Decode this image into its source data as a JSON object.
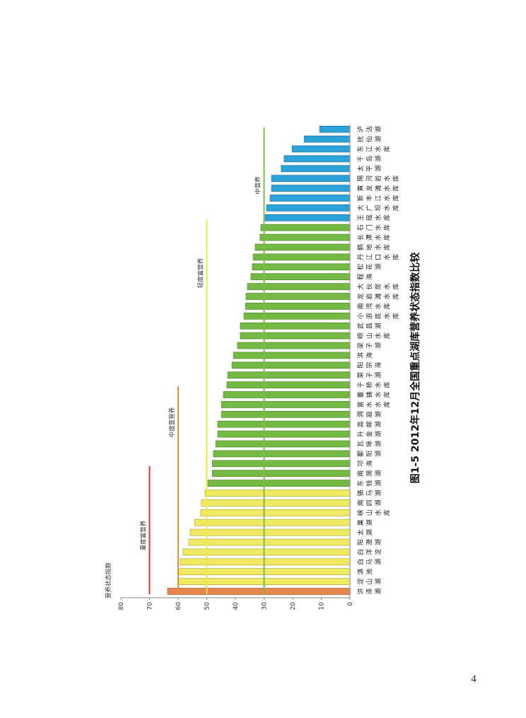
{
  "page": {
    "page_number": "4"
  },
  "chart_data": {
    "type": "bar",
    "orientation": "rotated-90-counterclockwise",
    "title": "图1-5 2012年12月全国重点湖库营养状态指数比较",
    "xlabel": "",
    "ylabel": "营养状态指数",
    "ylim": [
      0,
      80
    ],
    "ticks": [
      "0",
      "10",
      "20",
      "30",
      "40",
      "50",
      "60",
      "70",
      "80"
    ],
    "categories": [
      "洪泽湖",
      "淀山湖",
      "滇池",
      "白马湖",
      "白洋淀",
      "阳澄湖",
      "太湖",
      "巢湖",
      "峡山水库",
      "南四湖",
      "骆马湖",
      "东钱湖",
      "南漪湖",
      "邛海",
      "鄱阳湖",
      "瓦埠湖",
      "升金湖",
      "高邮湖",
      "洞庭湖",
      "富水水库",
      "董铺水库",
      "于桥水库",
      "菜子湖",
      "阳宗海",
      "洱海",
      "梁子湖",
      "崂山水库",
      "武昌湖",
      "小浪底水库",
      "南湾水库",
      "龙岩滩水库",
      "大伙房水库",
      "程海",
      "松花湖",
      "丹江口水库",
      "鹤地水库",
      "长潭水库",
      "石门水库",
      "王瑶水库",
      "大广坝水库",
      "新丰江水库",
      "黄龙滩水库",
      "隔河岩水库",
      "太平湖",
      "千岛湖",
      "东江水库",
      "抚仙湖",
      "泸沽湖"
    ],
    "values": [
      63.7,
      59.9,
      59.8,
      59.3,
      58.3,
      56.3,
      55.8,
      54.3,
      52.1,
      51.9,
      50.6,
      49.6,
      48.1,
      48.1,
      47.7,
      46.9,
      46.2,
      46.2,
      44.9,
      44.9,
      44.2,
      43.0,
      42.7,
      41.2,
      40.7,
      39.3,
      38.3,
      38.3,
      37.0,
      36.5,
      36.3,
      35.8,
      34.6,
      34.1,
      33.8,
      33.1,
      31.4,
      31.1,
      29.6,
      29.1,
      27.9,
      27.4,
      27.4,
      24.0,
      23.0,
      20.2,
      16.0,
      10.6
    ],
    "class_colors": [
      {
        "below": 30,
        "fill": "#2ba3da",
        "stroke": "#1b6f9a"
      },
      {
        "below": 50,
        "fill": "#74b944",
        "stroke": "#4e8a28"
      },
      {
        "below": 60,
        "fill": "#efe964",
        "stroke": "#b3ad2c"
      },
      {
        "below": 70,
        "fill": "#e8844d",
        "stroke": "#b45e2c"
      }
    ],
    "reference_lines": [
      {
        "value": 30,
        "label": "中营养",
        "color": "#7cc04a"
      },
      {
        "value": 50,
        "label": "轻度富营养",
        "color": "#f2e83a"
      },
      {
        "value": 60,
        "label": "中度富营养",
        "color": "#ef8f2c"
      },
      {
        "value": 70,
        "label": "重度富营养",
        "color": "#d8352b"
      }
    ],
    "grid": false,
    "legend": "none"
  }
}
